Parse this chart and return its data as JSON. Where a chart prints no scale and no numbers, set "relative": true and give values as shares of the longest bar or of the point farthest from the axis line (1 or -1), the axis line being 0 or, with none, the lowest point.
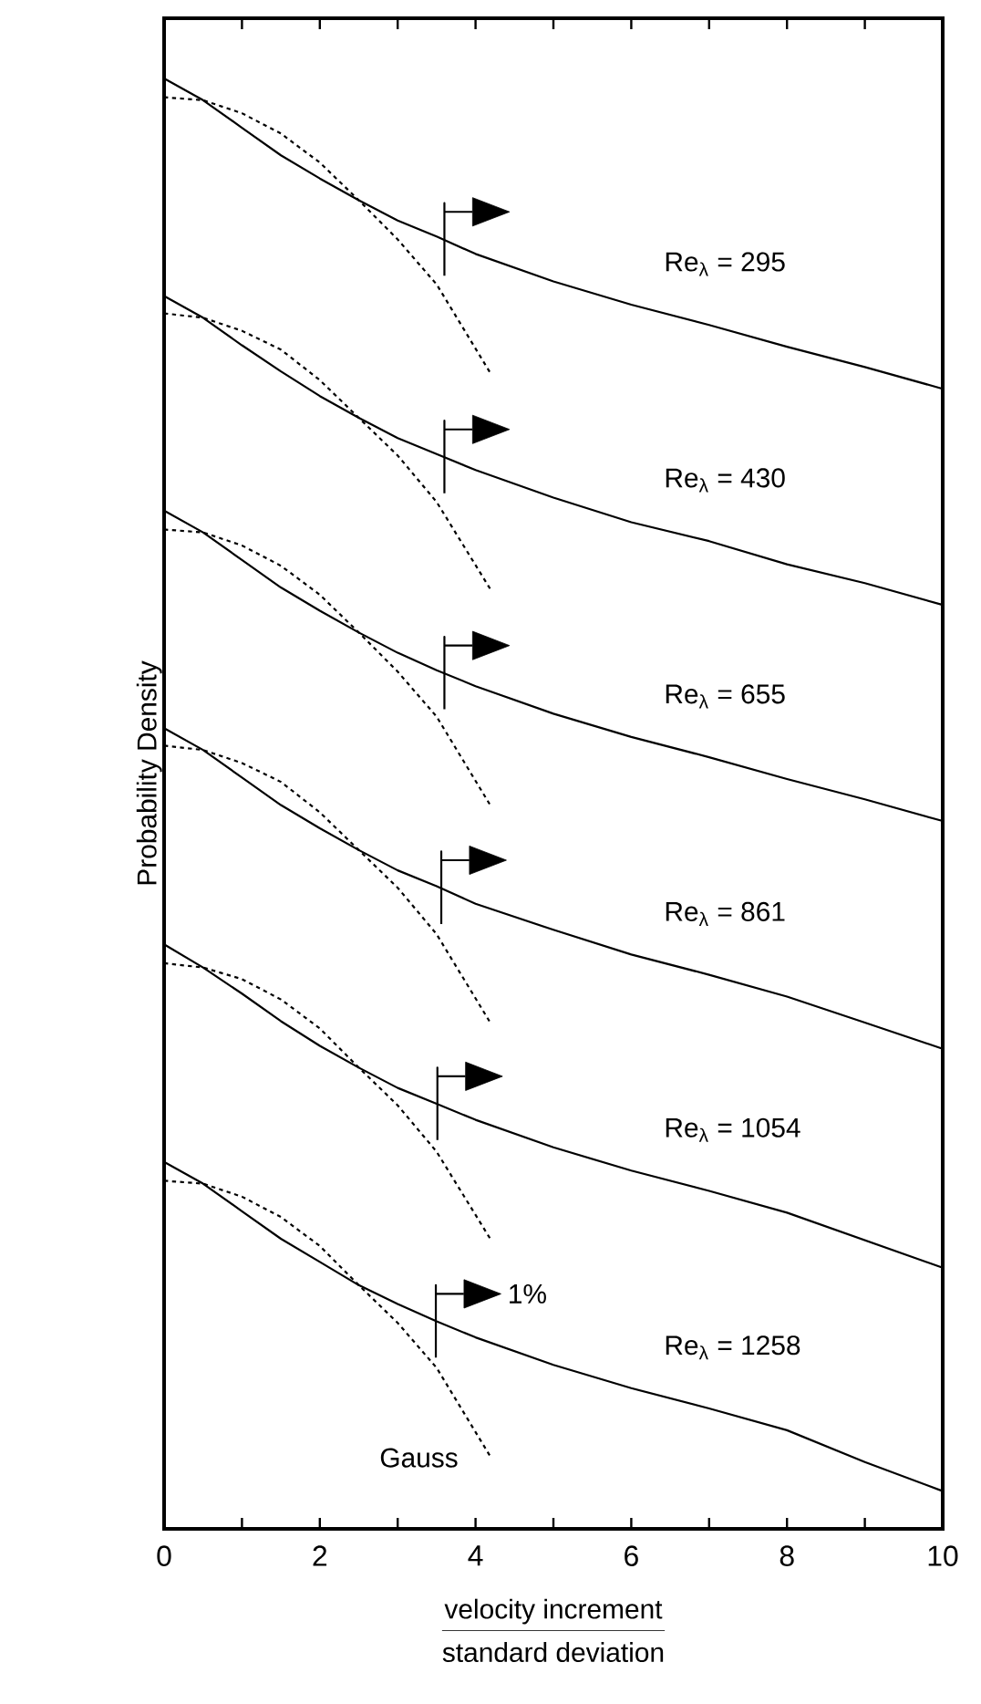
{
  "chart_data": {
    "type": "line",
    "relative": true,
    "xlabel": "velocity increment",
    "ylabel": "Probability Density",
    "xlim": [
      0,
      10
    ],
    "xticks": [
      0,
      {
        "value": 1,
        "label": null
      },
      2,
      {
        "value": 3,
        "label": null
      },
      4,
      {
        "value": 5,
        "label": null
      },
      6,
      {
        "value": 7,
        "label": null
      },
      8,
      {
        "value": 9,
        "label": null
      },
      10
    ],
    "series": [
      {
        "name": "Re$_{λ}$ = 295",
        "color": "#000000",
        "line_style": "solid",
        "x": [
          0,
          0.5,
          1,
          1.5,
          2,
          2.5,
          3,
          3.5,
          4,
          5,
          6,
          7,
          8,
          9,
          10
        ],
        "values": [
          1.0,
          0.985,
          0.966,
          0.947,
          0.931,
          0.916,
          0.902,
          0.891,
          0.879,
          0.86,
          0.844,
          0.83,
          0.815,
          0.801,
          0.786
        ]
      },
      {
        "color": "#000000",
        "line_style": "dashed",
        "x": [
          0,
          0.5,
          1,
          1.5,
          2,
          2.5,
          3,
          3.5,
          4.2
        ],
        "values": [
          0.987,
          0.985,
          0.976,
          0.962,
          0.942,
          0.916,
          0.889,
          0.858,
          0.796
        ]
      },
      {
        "name": "Re$_{λ}$ = 430",
        "color": "#000000",
        "line_style": "solid",
        "x": [
          0,
          0.5,
          1,
          1.5,
          2,
          2.5,
          3,
          3.5,
          4,
          5,
          6,
          7,
          8,
          9,
          10
        ],
        "values": [
          0.85,
          0.835,
          0.816,
          0.798,
          0.781,
          0.766,
          0.752,
          0.741,
          0.73,
          0.711,
          0.694,
          0.681,
          0.665,
          0.652,
          0.637
        ]
      },
      {
        "color": "#000000",
        "line_style": "dashed",
        "x": [
          0,
          0.5,
          1,
          1.5,
          2,
          2.5,
          3,
          3.5,
          4.2
        ],
        "values": [
          0.838,
          0.835,
          0.826,
          0.813,
          0.792,
          0.766,
          0.74,
          0.708,
          0.647
        ]
      },
      {
        "name": "Re$_{λ}$ = 655",
        "color": "#000000",
        "line_style": "solid",
        "x": [
          0,
          0.5,
          1,
          1.5,
          2,
          2.5,
          3,
          3.5,
          4,
          5,
          6,
          7,
          8,
          9,
          10
        ],
        "values": [
          0.702,
          0.687,
          0.668,
          0.649,
          0.633,
          0.618,
          0.604,
          0.592,
          0.581,
          0.562,
          0.546,
          0.532,
          0.517,
          0.503,
          0.488
        ]
      },
      {
        "color": "#000000",
        "line_style": "dashed",
        "x": [
          0,
          0.5,
          1,
          1.5,
          2,
          2.5,
          3,
          3.5,
          4.2
        ],
        "values": [
          0.689,
          0.687,
          0.678,
          0.664,
          0.644,
          0.618,
          0.591,
          0.56,
          0.498
        ]
      },
      {
        "name": "Re$_{λ}$ = 861",
        "color": "#000000",
        "line_style": "solid",
        "x": [
          0,
          0.5,
          1,
          1.5,
          2,
          2.5,
          3,
          3.5,
          4,
          5,
          6,
          7,
          8,
          9,
          10
        ],
        "values": [
          0.552,
          0.537,
          0.518,
          0.499,
          0.483,
          0.468,
          0.454,
          0.443,
          0.431,
          0.413,
          0.396,
          0.382,
          0.367,
          0.349,
          0.331
        ]
      },
      {
        "color": "#000000",
        "line_style": "dashed",
        "x": [
          0,
          0.5,
          1,
          1.5,
          2,
          2.5,
          3,
          3.5,
          4.2
        ],
        "values": [
          0.54,
          0.537,
          0.528,
          0.515,
          0.494,
          0.468,
          0.442,
          0.41,
          0.348
        ]
      },
      {
        "name": "Re$_{λ}$ = 1054",
        "color": "#000000",
        "line_style": "solid",
        "x": [
          0,
          0.5,
          1,
          1.5,
          2,
          2.5,
          3,
          3.5,
          4,
          5,
          6,
          7,
          8,
          9,
          10
        ],
        "values": [
          0.403,
          0.387,
          0.369,
          0.35,
          0.333,
          0.318,
          0.304,
          0.293,
          0.282,
          0.263,
          0.247,
          0.233,
          0.218,
          0.199,
          0.18
        ]
      },
      {
        "color": "#000000",
        "line_style": "dashed",
        "x": [
          0,
          0.5,
          1,
          1.5,
          2,
          2.5,
          3,
          3.5,
          4.2
        ],
        "values": [
          0.39,
          0.387,
          0.379,
          0.365,
          0.345,
          0.318,
          0.292,
          0.26,
          0.199
        ]
      },
      {
        "name": "Re$_{λ}$ = 1258",
        "color": "#000000",
        "line_style": "solid",
        "x": [
          0,
          0.5,
          1,
          1.5,
          2,
          2.5,
          3,
          3.5,
          4,
          5,
          6,
          7,
          8,
          9,
          10
        ],
        "values": [
          0.253,
          0.238,
          0.219,
          0.2,
          0.184,
          0.168,
          0.155,
          0.143,
          0.132,
          0.113,
          0.097,
          0.083,
          0.068,
          0.046,
          0.026
        ]
      },
      {
        "name": "Gauss",
        "color": "#000000",
        "line_style": "dashed",
        "x": [
          0,
          0.5,
          1,
          1.5,
          2,
          2.5,
          3,
          3.5,
          4.2
        ],
        "values": [
          0.24,
          0.238,
          0.229,
          0.215,
          0.195,
          0.168,
          0.142,
          0.111,
          0.049
        ]
      },
      {
        "type": "scatter",
        "marker": "triangle",
        "color": "#000000",
        "x": [
          4.12,
          4.12,
          4.12,
          4.08,
          4.03,
          4.01
        ],
        "values": [
          0.908,
          0.758,
          0.609,
          0.461,
          0.312,
          0.162
        ]
      },
      {
        "color": "#000000",
        "line_style": "solid",
        "x": [
          3.6,
          3.6,
          3.6,
          3.96,
          null,
          3.6,
          3.6,
          3.6,
          3.96,
          null,
          3.6,
          3.6,
          3.6,
          3.96,
          null,
          3.56,
          3.56,
          3.56,
          3.92,
          null,
          3.51,
          3.51,
          3.51,
          3.87,
          null,
          3.49,
          3.49,
          3.49,
          3.85
        ],
        "values": [
          0.864,
          0.914,
          0.908,
          0.908,
          null,
          0.714,
          0.764,
          0.758,
          0.758,
          null,
          0.565,
          0.615,
          0.609,
          0.609,
          null,
          0.417,
          0.467,
          0.461,
          0.461,
          null,
          0.268,
          0.318,
          0.312,
          0.312,
          null,
          0.118,
          0.168,
          0.162,
          0.162
        ]
      }
    ],
    "annotations": [
      "standard deviation",
      "1%"
    ]
  }
}
